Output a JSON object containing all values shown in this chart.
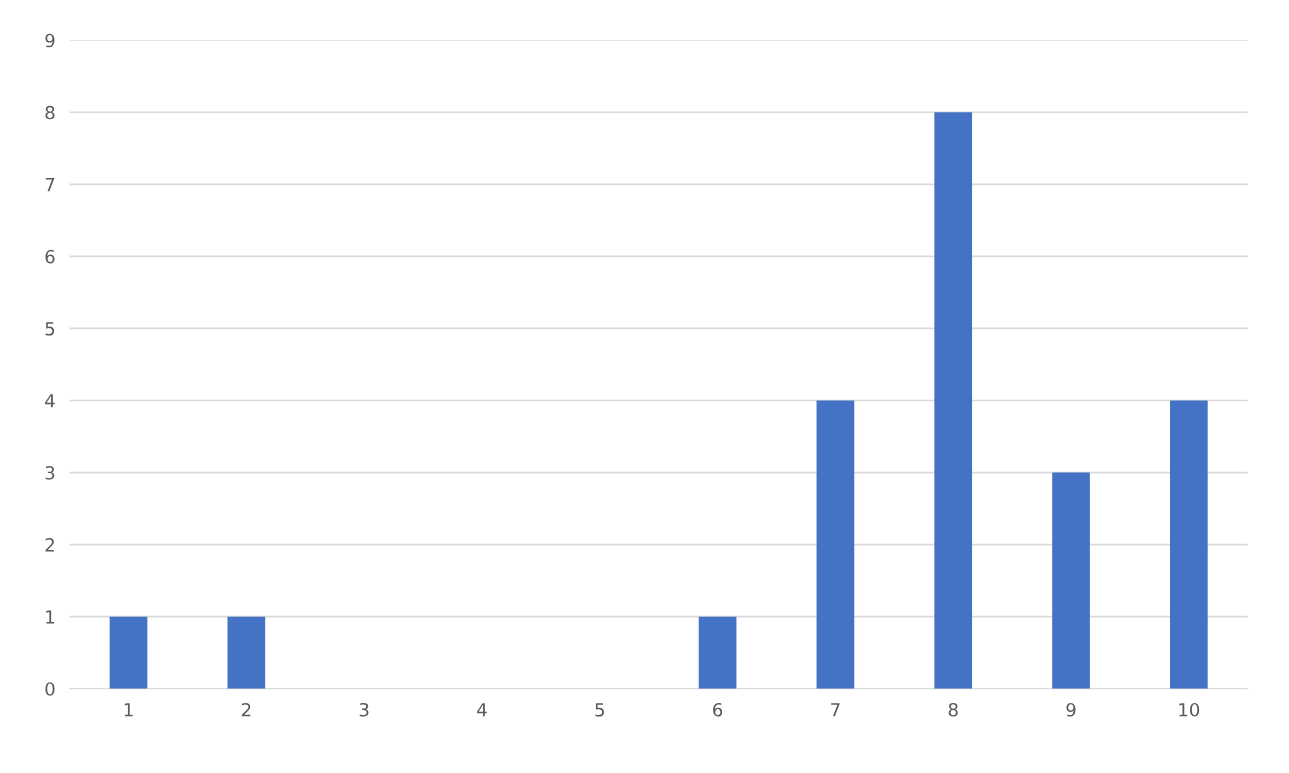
{
  "chart_data": {
    "type": "bar",
    "categories": [
      "1",
      "2",
      "3",
      "4",
      "5",
      "6",
      "7",
      "8",
      "9",
      "10"
    ],
    "values": [
      1,
      1,
      0,
      0,
      0,
      1,
      4,
      8,
      3,
      4
    ],
    "color": "#4472c4",
    "ylim": [
      0,
      9
    ],
    "yticks": [
      0,
      1,
      2,
      3,
      4,
      5,
      6,
      7,
      8,
      9
    ],
    "grid": "y"
  }
}
